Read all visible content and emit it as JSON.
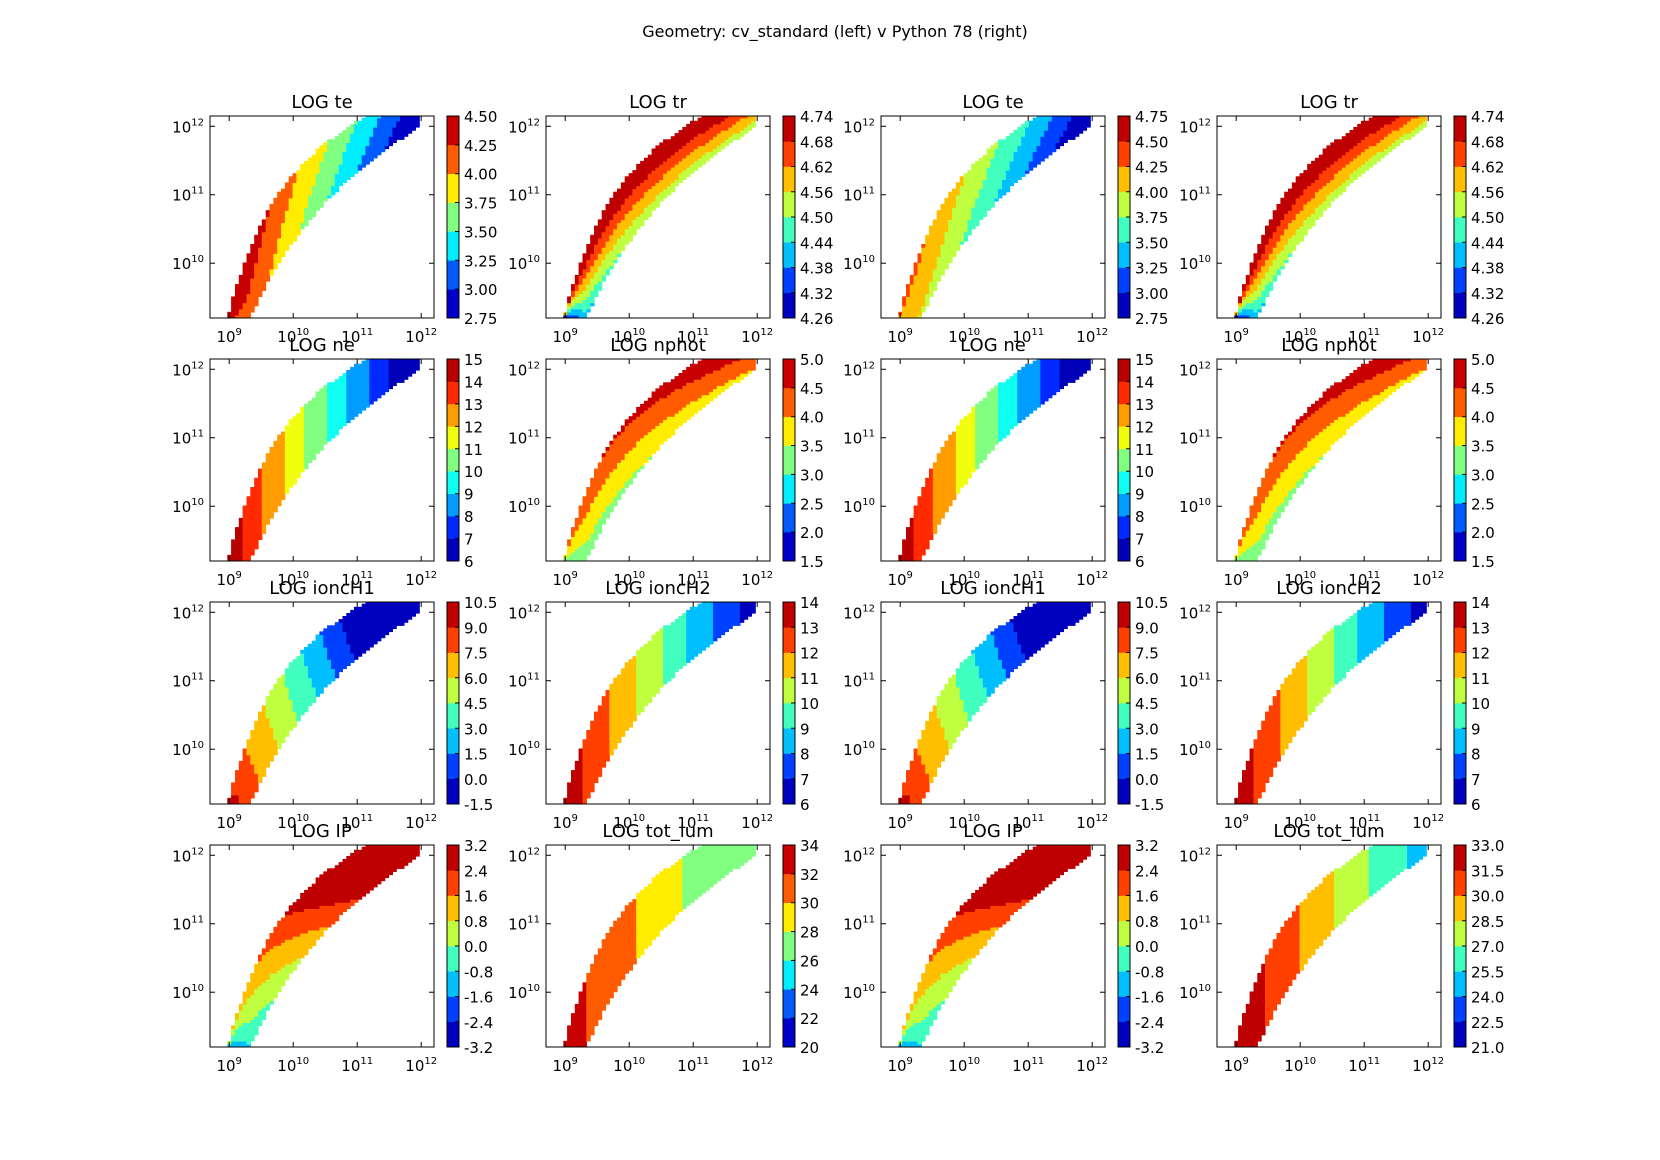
{
  "figure": {
    "suptitle": "Geometry: cv_standard (left) v Python 78 (right)"
  },
  "chart_data": [
    {
      "type": "heatmap",
      "title": "LOG te",
      "model": "cv_standard",
      "x_ticks": [
        "10^9",
        "10^10",
        "10^11",
        "10^12"
      ],
      "y_ticks": [
        "10^10",
        "10^11",
        "10^12"
      ],
      "colorbar": [
        "2.75",
        "3.00",
        "3.25",
        "3.50",
        "3.75",
        "4.00",
        "4.25",
        "4.50"
      ],
      "profile": "te"
    },
    {
      "type": "heatmap",
      "title": "LOG tr",
      "model": "cv_standard",
      "x_ticks": [
        "10^9",
        "10^10",
        "10^11",
        "10^12"
      ],
      "y_ticks": [
        "10^10",
        "10^11",
        "10^12"
      ],
      "colorbar": [
        "4.26",
        "4.32",
        "4.38",
        "4.44",
        "4.50",
        "4.56",
        "4.62",
        "4.68",
        "4.74"
      ],
      "profile": "tr"
    },
    {
      "type": "heatmap",
      "title": "LOG te",
      "model": "Python 78",
      "x_ticks": [
        "10^9",
        "10^10",
        "10^11",
        "10^12"
      ],
      "y_ticks": [
        "10^10",
        "10^11",
        "10^12"
      ],
      "colorbar": [
        "2.75",
        "3.00",
        "3.25",
        "3.50",
        "3.75",
        "4.00",
        "4.25",
        "4.50",
        "4.75"
      ],
      "profile": "te2"
    },
    {
      "type": "heatmap",
      "title": "LOG tr",
      "model": "Python 78",
      "x_ticks": [
        "10^9",
        "10^10",
        "10^11",
        "10^12"
      ],
      "y_ticks": [
        "10^10",
        "10^11",
        "10^12"
      ],
      "colorbar": [
        "4.26",
        "4.32",
        "4.38",
        "4.44",
        "4.50",
        "4.56",
        "4.62",
        "4.68",
        "4.74"
      ],
      "profile": "tr"
    },
    {
      "type": "heatmap",
      "title": "LOG ne",
      "model": "cv_standard",
      "x_ticks": [
        "10^9",
        "10^10",
        "10^11",
        "10^12"
      ],
      "y_ticks": [
        "10^10",
        "10^11",
        "10^12"
      ],
      "colorbar": [
        "6",
        "7",
        "8",
        "9",
        "10",
        "11",
        "12",
        "13",
        "14",
        "15"
      ],
      "profile": "ne"
    },
    {
      "type": "heatmap",
      "title": "LOG nphot",
      "model": "cv_standard",
      "x_ticks": [
        "10^9",
        "10^10",
        "10^11",
        "10^12"
      ],
      "y_ticks": [
        "10^10",
        "10^11",
        "10^12"
      ],
      "colorbar": [
        "1.5",
        "2.0",
        "2.5",
        "3.0",
        "3.5",
        "4.0",
        "4.5",
        "5.0"
      ],
      "profile": "nphot"
    },
    {
      "type": "heatmap",
      "title": "LOG ne",
      "model": "Python 78",
      "x_ticks": [
        "10^9",
        "10^10",
        "10^11",
        "10^12"
      ],
      "y_ticks": [
        "10^10",
        "10^11",
        "10^12"
      ],
      "colorbar": [
        "6",
        "7",
        "8",
        "9",
        "10",
        "11",
        "12",
        "13",
        "14",
        "15"
      ],
      "profile": "ne"
    },
    {
      "type": "heatmap",
      "title": "LOG nphot",
      "model": "Python 78",
      "x_ticks": [
        "10^9",
        "10^10",
        "10^11",
        "10^12"
      ],
      "y_ticks": [
        "10^10",
        "10^11",
        "10^12"
      ],
      "colorbar": [
        "1.5",
        "2.0",
        "2.5",
        "3.0",
        "3.5",
        "4.0",
        "4.5",
        "5.0"
      ],
      "profile": "nphot"
    },
    {
      "type": "heatmap",
      "title": "LOG ioncH1",
      "model": "cv_standard",
      "x_ticks": [
        "10^9",
        "10^10",
        "10^11",
        "10^12"
      ],
      "y_ticks": [
        "10^10",
        "10^11",
        "10^12"
      ],
      "colorbar": [
        "-1.5",
        "0.0",
        "1.5",
        "3.0",
        "4.5",
        "6.0",
        "7.5",
        "9.0",
        "10.5"
      ],
      "profile": "h1"
    },
    {
      "type": "heatmap",
      "title": "LOG ioncH2",
      "model": "cv_standard",
      "x_ticks": [
        "10^9",
        "10^10",
        "10^11",
        "10^12"
      ],
      "y_ticks": [
        "10^10",
        "10^11",
        "10^12"
      ],
      "colorbar": [
        "6",
        "7",
        "8",
        "9",
        "10",
        "11",
        "12",
        "13",
        "14"
      ],
      "profile": "h2"
    },
    {
      "type": "heatmap",
      "title": "LOG ioncH1",
      "model": "Python 78",
      "x_ticks": [
        "10^9",
        "10^10",
        "10^11",
        "10^12"
      ],
      "y_ticks": [
        "10^10",
        "10^11",
        "10^12"
      ],
      "colorbar": [
        "-1.5",
        "0.0",
        "1.5",
        "3.0",
        "4.5",
        "6.0",
        "7.5",
        "9.0",
        "10.5"
      ],
      "profile": "h1"
    },
    {
      "type": "heatmap",
      "title": "LOG ioncH2",
      "model": "Python 78",
      "x_ticks": [
        "10^9",
        "10^10",
        "10^11",
        "10^12"
      ],
      "y_ticks": [
        "10^10",
        "10^11",
        "10^12"
      ],
      "colorbar": [
        "6",
        "7",
        "8",
        "9",
        "10",
        "11",
        "12",
        "13",
        "14"
      ],
      "profile": "h2"
    },
    {
      "type": "heatmap",
      "title": "LOG IP",
      "model": "cv_standard",
      "x_ticks": [
        "10^9",
        "10^10",
        "10^11",
        "10^12"
      ],
      "y_ticks": [
        "10^10",
        "10^11",
        "10^12"
      ],
      "colorbar": [
        "-3.2",
        "-2.4",
        "-1.6",
        "-0.8",
        "0.0",
        "0.8",
        "1.6",
        "2.4",
        "3.2"
      ],
      "profile": "ip"
    },
    {
      "type": "heatmap",
      "title": "LOG tot_lum",
      "model": "cv_standard",
      "x_ticks": [
        "10^9",
        "10^10",
        "10^11",
        "10^12"
      ],
      "y_ticks": [
        "10^10",
        "10^11",
        "10^12"
      ],
      "colorbar": [
        "20",
        "22",
        "24",
        "26",
        "28",
        "30",
        "32",
        "34"
      ],
      "profile": "lum"
    },
    {
      "type": "heatmap",
      "title": "LOG IP",
      "model": "Python 78",
      "x_ticks": [
        "10^9",
        "10^10",
        "10^11",
        "10^12"
      ],
      "y_ticks": [
        "10^10",
        "10^11",
        "10^12"
      ],
      "colorbar": [
        "-3.2",
        "-2.4",
        "-1.6",
        "-0.8",
        "0.0",
        "0.8",
        "1.6",
        "2.4",
        "3.2"
      ],
      "profile": "ip"
    },
    {
      "type": "heatmap",
      "title": "LOG tot_lum",
      "model": "Python 78",
      "x_ticks": [
        "10^9",
        "10^10",
        "10^11",
        "10^12"
      ],
      "y_ticks": [
        "10^10",
        "10^11",
        "10^12"
      ],
      "colorbar": [
        "21.0",
        "22.5",
        "24.0",
        "25.5",
        "27.0",
        "28.5",
        "30.0",
        "31.5",
        "33.0"
      ],
      "profile": "lum2"
    }
  ]
}
